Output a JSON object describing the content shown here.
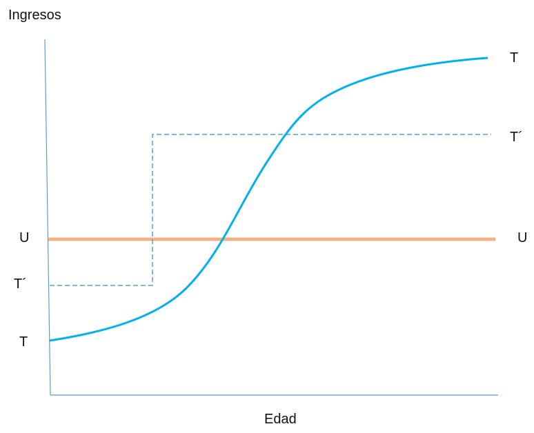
{
  "axes": {
    "y_label": "Ingresos",
    "x_label": "Edad",
    "axis_color": "#5b9bd5"
  },
  "curves": {
    "T": {
      "left_label": "T",
      "right_label": "T",
      "color": "#00b0f0",
      "shape": "rising-s-curve"
    },
    "T_prime": {
      "left_label": "T´",
      "right_label": "T´",
      "color": "#5b9bd5",
      "style": "dashed-step"
    },
    "U": {
      "left_label": "U",
      "right_label": "U",
      "color": "#f4b183",
      "style": "horizontal-thick"
    }
  }
}
